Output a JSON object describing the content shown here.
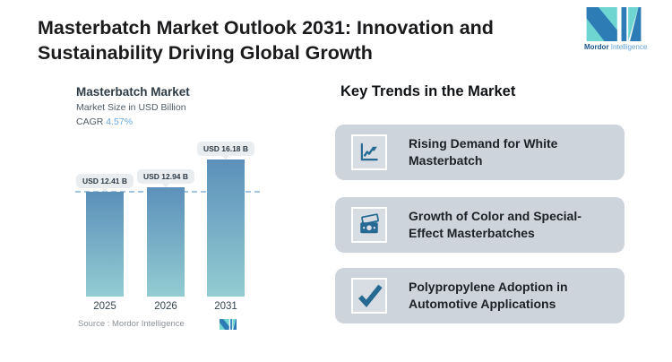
{
  "header": {
    "title": "Masterbatch Market Outlook 2031: Innovation and Sustainability Driving Global Growth",
    "logo": {
      "name_bold": "Mordor",
      "name_light": "Intelligence"
    }
  },
  "chart": {
    "title": "Masterbatch Market",
    "subtitle": "Market Size in USD Billion",
    "cagr_label": "CAGR",
    "cagr_value": "4.57%",
    "source_label": "Source :  Mordor Intelligence"
  },
  "chart_data": {
    "type": "bar",
    "title": "Masterbatch Market",
    "subtitle": "Market Size in USD Billion",
    "cagr": "4.57%",
    "unit": "USD Billion",
    "categories": [
      "2025",
      "2026",
      "2031"
    ],
    "values": [
      12.41,
      12.94,
      16.18
    ],
    "value_labels": [
      "USD 12.41 B",
      "USD 12.94 B",
      "USD 16.18 B"
    ],
    "reference_line": 12.41,
    "grid": false,
    "bar_gradient_top": "#5c90ba",
    "bar_gradient_bottom": "#93ccd2",
    "reference_line_color": "#a3c4e0"
  },
  "trends": {
    "heading": "Key Trends in the Market",
    "items": [
      {
        "icon": "trend-up-chart-icon",
        "text": "Rising Demand for White Masterbatch"
      },
      {
        "icon": "banknote-icon",
        "text": "Growth of Color and Special-Effect Masterbatches"
      },
      {
        "icon": "checkmark-icon",
        "text": "Polypropylene Adoption in Automotive Applications"
      }
    ]
  },
  "colors": {
    "title_text": "#1b1b1d",
    "card_background": "#ced4db",
    "icon_blue": "#266a93",
    "cagr_blue": "#6ba7de",
    "logo_teal": "#6ed5d0",
    "logo_blue": "#2d7cb6"
  }
}
